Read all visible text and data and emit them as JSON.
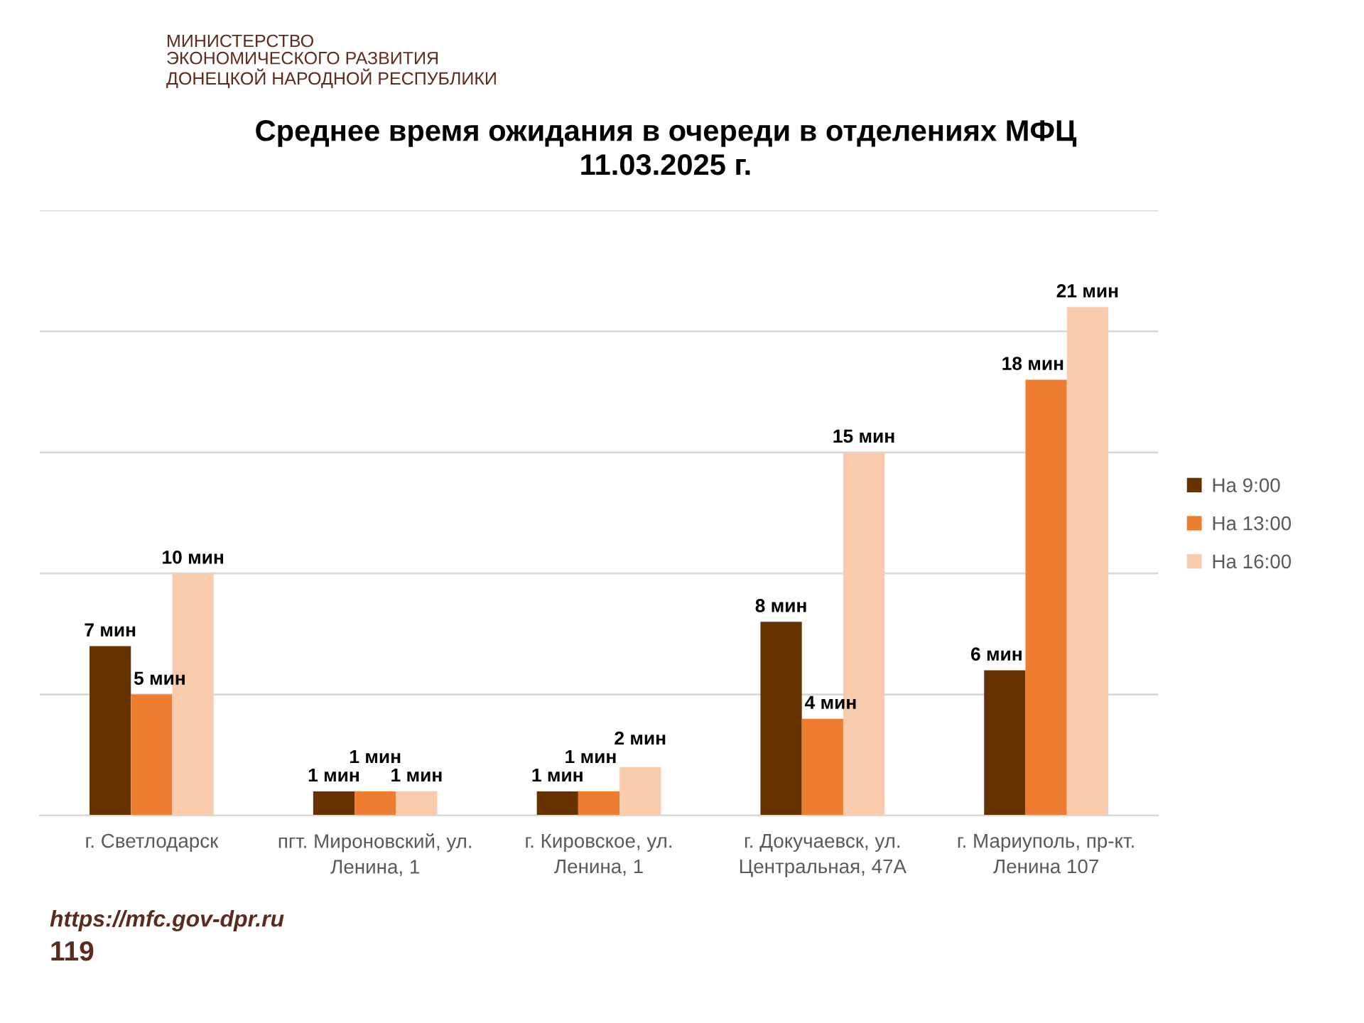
{
  "chart_data": {
    "type": "bar",
    "title": "Среднее время ожидания в очереди в отделениях МФЦ\n11.03.2025 г.",
    "categories": [
      "г. Светлодарск",
      "пгт. Мироновский, ул.\nЛенина, 1",
      "г. Кировское, ул.\nЛенина, 1",
      "г. Докучаевск, ул.\nЦентральная, 47А",
      "г. Мариуполь, пр-кт.\nЛенина 107"
    ],
    "series": [
      {
        "name": "На 9:00",
        "color": "#663300",
        "values": [
          7,
          1,
          1,
          8,
          6
        ],
        "value_labels": [
          "7 мин",
          "1 мин",
          "1 мин",
          "8 мин",
          "6 мин"
        ]
      },
      {
        "name": "На 13:00",
        "color": "#ed7d31",
        "values": [
          5,
          1,
          1,
          4,
          18
        ],
        "value_labels": [
          "5 мин",
          "1 мин",
          "1 мин",
          "4 мин",
          "18 мин"
        ]
      },
      {
        "name": "На 16:00",
        "color": "#f8cbad",
        "values": [
          10,
          1,
          2,
          15,
          21
        ],
        "value_labels": [
          "10 мин",
          "1 мин",
          "2 мин",
          "15 мин",
          "21 мин"
        ]
      }
    ],
    "ylim": [
      0,
      25
    ],
    "yticks": [
      {
        "value": 0,
        "label": null
      },
      {
        "value": 5,
        "label": null
      },
      {
        "value": 10,
        "label": null
      },
      {
        "value": 15,
        "label": null
      },
      {
        "value": 20,
        "label": null
      },
      {
        "value": 25,
        "label": null
      }
    ],
    "grid": "y",
    "legend": "right",
    "tick_labels": "x",
    "annotations": [
      "МИНИСТЕРСТВО\nЭКОНОМИЧЕСКОГО РАЗВИТИЯ\nДОНЕЦКОЙ НАРОДНОЙ РЕСПУБЛИКИ",
      "https://mfc.gov-dpr.ru",
      "119"
    ]
  }
}
